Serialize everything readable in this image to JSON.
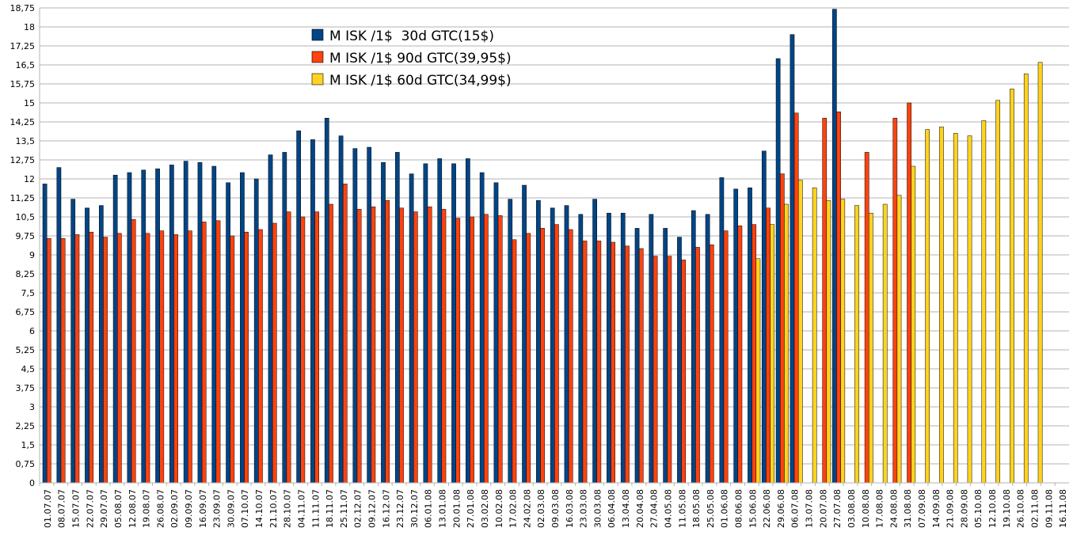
{
  "chart_data": {
    "type": "bar",
    "title": "",
    "xlabel": "",
    "ylabel": "",
    "ylim": [
      0,
      18.75
    ],
    "y_ticks": [
      "0",
      "0,75",
      "1,5",
      "2,25",
      "3",
      "3,75",
      "4,5",
      "5,25",
      "6",
      "6,75",
      "7,5",
      "8,25",
      "9",
      "9,75",
      "10,5",
      "11,25",
      "12",
      "12,75",
      "13,5",
      "14,25",
      "15",
      "15,75",
      "16,5",
      "17,25",
      "18",
      "18,75"
    ],
    "grid": "horizontal",
    "legend_position": "top-center",
    "categories": [
      "01.07.07",
      "08.07.07",
      "15.07.07",
      "22.07.07",
      "29.07.07",
      "05.08.07",
      "12.08.07",
      "19.08.07",
      "26.08.07",
      "02.09.07",
      "09.09.07",
      "16.09.07",
      "23.09.07",
      "30.09.07",
      "07.10.07",
      "14.10.07",
      "21.10.07",
      "28.10.07",
      "04.11.07",
      "11.11.07",
      "18.11.07",
      "25.11.07",
      "02.12.07",
      "09.12.07",
      "16.12.07",
      "23.12.07",
      "30.12.07",
      "06.01.08",
      "13.01.08",
      "20.01.08",
      "27.01.08",
      "03.02.08",
      "10.02.08",
      "17.02.08",
      "24.02.08",
      "02.03.08",
      "09.03.08",
      "16.03.08",
      "23.03.08",
      "30.03.08",
      "06.04.08",
      "13.04.08",
      "20.04.08",
      "27.04.08",
      "04.05.08",
      "11.05.08",
      "18.05.08",
      "25.05.08",
      "01.06.08",
      "08.06.08",
      "15.06.08",
      "22.06.08",
      "29.06.08",
      "06.07.08",
      "13.07.08",
      "20.07.08",
      "27.07.08",
      "03.08.08",
      "10.08.08",
      "17.08.08",
      "24.08.08",
      "31.08.08",
      "07.09.08",
      "14.09.08",
      "21.09.08",
      "28.09.08",
      "05.10.08",
      "12.10.08",
      "19.10.08",
      "26.10.08",
      "02.11.08",
      "09.11.08",
      "16.11.08"
    ],
    "series": [
      {
        "name": "M ISK /1$  30d GTC(15$)",
        "color": "#004586",
        "values": [
          11.8,
          12.45,
          11.2,
          10.85,
          10.95,
          12.15,
          12.25,
          12.35,
          12.4,
          12.55,
          12.7,
          12.65,
          12.5,
          11.85,
          12.25,
          12.0,
          12.95,
          13.05,
          13.9,
          13.55,
          14.4,
          13.7,
          13.2,
          13.25,
          12.65,
          13.05,
          12.2,
          12.6,
          12.8,
          12.6,
          12.8,
          12.25,
          11.85,
          11.2,
          11.75,
          11.15,
          10.85,
          10.95,
          10.6,
          11.2,
          10.65,
          10.65,
          10.05,
          10.6,
          10.05,
          9.7,
          10.75,
          10.6,
          12.05,
          11.6,
          11.65,
          13.1,
          16.75,
          17.7,
          null,
          null,
          18.7,
          null,
          null,
          null,
          null,
          null,
          null,
          null,
          null,
          null,
          null,
          null,
          null,
          null,
          null,
          null,
          null
        ]
      },
      {
        "name": "M ISK /1$ 90d GTC(39,95$)",
        "color": "#ff420e",
        "values": [
          9.65,
          9.65,
          9.8,
          9.9,
          9.7,
          9.85,
          10.4,
          9.85,
          9.95,
          9.8,
          9.95,
          10.3,
          10.35,
          9.75,
          9.9,
          10.0,
          10.25,
          10.7,
          10.5,
          10.7,
          11.0,
          11.8,
          10.8,
          10.9,
          11.15,
          10.85,
          10.7,
          10.9,
          10.8,
          10.45,
          10.5,
          10.6,
          10.55,
          9.6,
          9.85,
          10.05,
          10.2,
          10.0,
          9.55,
          9.55,
          9.5,
          9.35,
          9.25,
          8.95,
          8.95,
          8.8,
          9.3,
          9.4,
          9.95,
          10.15,
          10.2,
          10.85,
          12.2,
          14.6,
          null,
          14.4,
          14.65,
          null,
          13.05,
          null,
          14.4,
          15.0,
          null,
          null,
          null,
          null,
          null,
          null,
          null,
          null,
          null,
          null,
          null
        ]
      },
      {
        "name": "M ISK /1$ 60d GTC(34,99$)",
        "color": "#ffd320",
        "values": [
          null,
          null,
          null,
          null,
          null,
          null,
          null,
          null,
          null,
          null,
          null,
          null,
          null,
          null,
          null,
          null,
          null,
          null,
          null,
          null,
          null,
          null,
          null,
          null,
          null,
          null,
          null,
          null,
          null,
          null,
          null,
          null,
          null,
          null,
          null,
          null,
          null,
          null,
          null,
          null,
          null,
          null,
          null,
          null,
          null,
          null,
          null,
          null,
          null,
          null,
          8.85,
          10.2,
          11.0,
          11.95,
          11.65,
          11.15,
          11.2,
          10.95,
          10.65,
          11.0,
          11.35,
          12.5,
          13.95,
          14.05,
          13.8,
          13.7,
          14.3,
          15.1,
          15.55,
          16.15,
          16.6,
          null,
          null
        ]
      }
    ]
  }
}
